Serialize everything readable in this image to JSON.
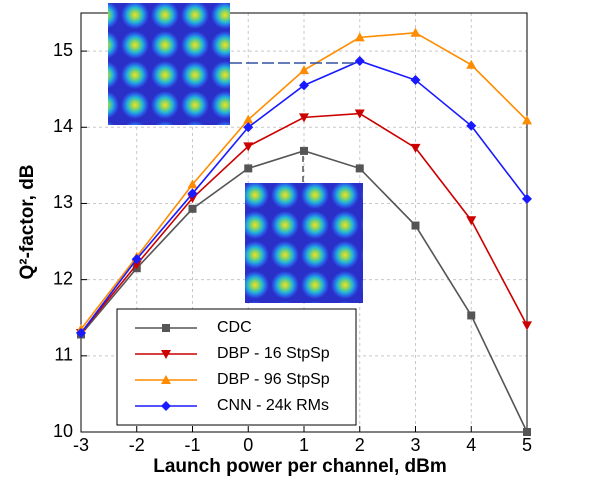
{
  "chart_data": {
    "type": "line",
    "x_label": "Launch power per channel, dBm",
    "y_label": "Q²-factor, dB",
    "x": [
      -3,
      -2,
      -1,
      0,
      1,
      2,
      3,
      4,
      5
    ],
    "xlim": [
      -3,
      5
    ],
    "xticks": [
      -3,
      -2,
      -1,
      0,
      1,
      2,
      3,
      4,
      5
    ],
    "ylim": [
      10,
      15.5
    ],
    "yticks": [
      10,
      11,
      12,
      13,
      14,
      15
    ],
    "grid": true,
    "legend": "lower left",
    "series": [
      {
        "name": "CDC",
        "color": "#555555",
        "marker": "square",
        "values": [
          11.28,
          12.15,
          12.93,
          13.46,
          13.69,
          13.46,
          12.71,
          11.53,
          10.0
        ]
      },
      {
        "name": "DBP - 16 StpSp",
        "color": "#cc0000",
        "marker": "triangle-down",
        "values": [
          11.3,
          12.2,
          13.07,
          13.75,
          14.13,
          14.18,
          13.73,
          12.78,
          11.4
        ]
      },
      {
        "name": "DBP - 96 StpSp",
        "color": "#ff8c00",
        "marker": "triangle-up",
        "values": [
          11.35,
          12.3,
          13.25,
          14.1,
          14.75,
          15.18,
          15.24,
          14.82,
          14.09
        ]
      },
      {
        "name": "CNN - 24k RMs",
        "color": "#1a1aff",
        "marker": "diamond",
        "values": [
          11.3,
          12.27,
          13.13,
          14.0,
          14.55,
          14.87,
          14.62,
          14.02,
          13.06
        ]
      }
    ]
  }
}
